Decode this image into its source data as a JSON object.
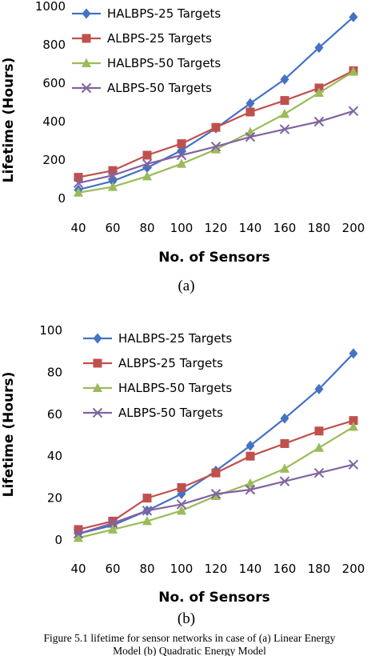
{
  "chart_data": [
    {
      "type": "line",
      "panel_label": "(a)",
      "title": "",
      "xlabel": "No. of Sensors",
      "ylabel": "Lifetime (Hours)",
      "x": [
        40,
        60,
        80,
        100,
        120,
        140,
        160,
        180,
        200
      ],
      "xticks": [
        40,
        60,
        80,
        100,
        120,
        140,
        160,
        180,
        200
      ],
      "ylim": [
        0,
        1000
      ],
      "yticks": [
        0,
        200,
        400,
        600,
        800,
        1000
      ],
      "grid": false,
      "legend_position": "top-left",
      "series": [
        {
          "name": "HALBPS-25 Targets",
          "color": "#4472c4",
          "marker": "diamond",
          "values": [
            45,
            90,
            160,
            250,
            365,
            495,
            620,
            785,
            945
          ]
        },
        {
          "name": "ALBPS-25 Targets",
          "color": "#c0504d",
          "marker": "square",
          "values": [
            110,
            145,
            225,
            285,
            370,
            450,
            510,
            575,
            665
          ]
        },
        {
          "name": "HALBPS-50 Targets",
          "color": "#9bbb59",
          "marker": "triangle",
          "values": [
            30,
            60,
            115,
            180,
            255,
            345,
            440,
            550,
            660
          ]
        },
        {
          "name": "ALBPS-50 Targets",
          "color": "#8064a2",
          "marker": "x",
          "values": [
            80,
            120,
            180,
            225,
            270,
            320,
            360,
            400,
            455
          ]
        }
      ]
    },
    {
      "type": "line",
      "panel_label": "(b)",
      "title": "",
      "xlabel": "No. of Sensors",
      "ylabel": "Lifetime (Hours)",
      "x": [
        40,
        60,
        80,
        100,
        120,
        140,
        160,
        180,
        200
      ],
      "xticks": [
        40,
        60,
        80,
        100,
        120,
        140,
        160,
        180,
        200
      ],
      "ylim": [
        0,
        100
      ],
      "yticks": [
        0,
        20,
        40,
        60,
        80,
        100
      ],
      "grid": false,
      "legend_position": "top-left",
      "series": [
        {
          "name": "HALBPS-25 Targets",
          "color": "#4472c4",
          "marker": "diamond",
          "values": [
            3,
            7,
            14,
            22,
            33,
            45,
            58,
            72,
            89
          ]
        },
        {
          "name": "ALBPS-25 Targets",
          "color": "#c0504d",
          "marker": "square",
          "values": [
            5,
            9,
            20,
            25,
            32,
            40,
            46,
            52,
            57
          ]
        },
        {
          "name": "HALBPS-50 Targets",
          "color": "#9bbb59",
          "marker": "triangle",
          "values": [
            1,
            5,
            9,
            14,
            21,
            27,
            34,
            44,
            54
          ]
        },
        {
          "name": "ALBPS-50 Targets",
          "color": "#8064a2",
          "marker": "x",
          "values": [
            3,
            8,
            14,
            17,
            22,
            24,
            28,
            32,
            36
          ]
        }
      ]
    }
  ],
  "caption": {
    "line1": "Figure 5.1 lifetime for sensor networks in case of (a) Linear Energy",
    "line2": "Model (b) Quadratic Energy Model"
  }
}
